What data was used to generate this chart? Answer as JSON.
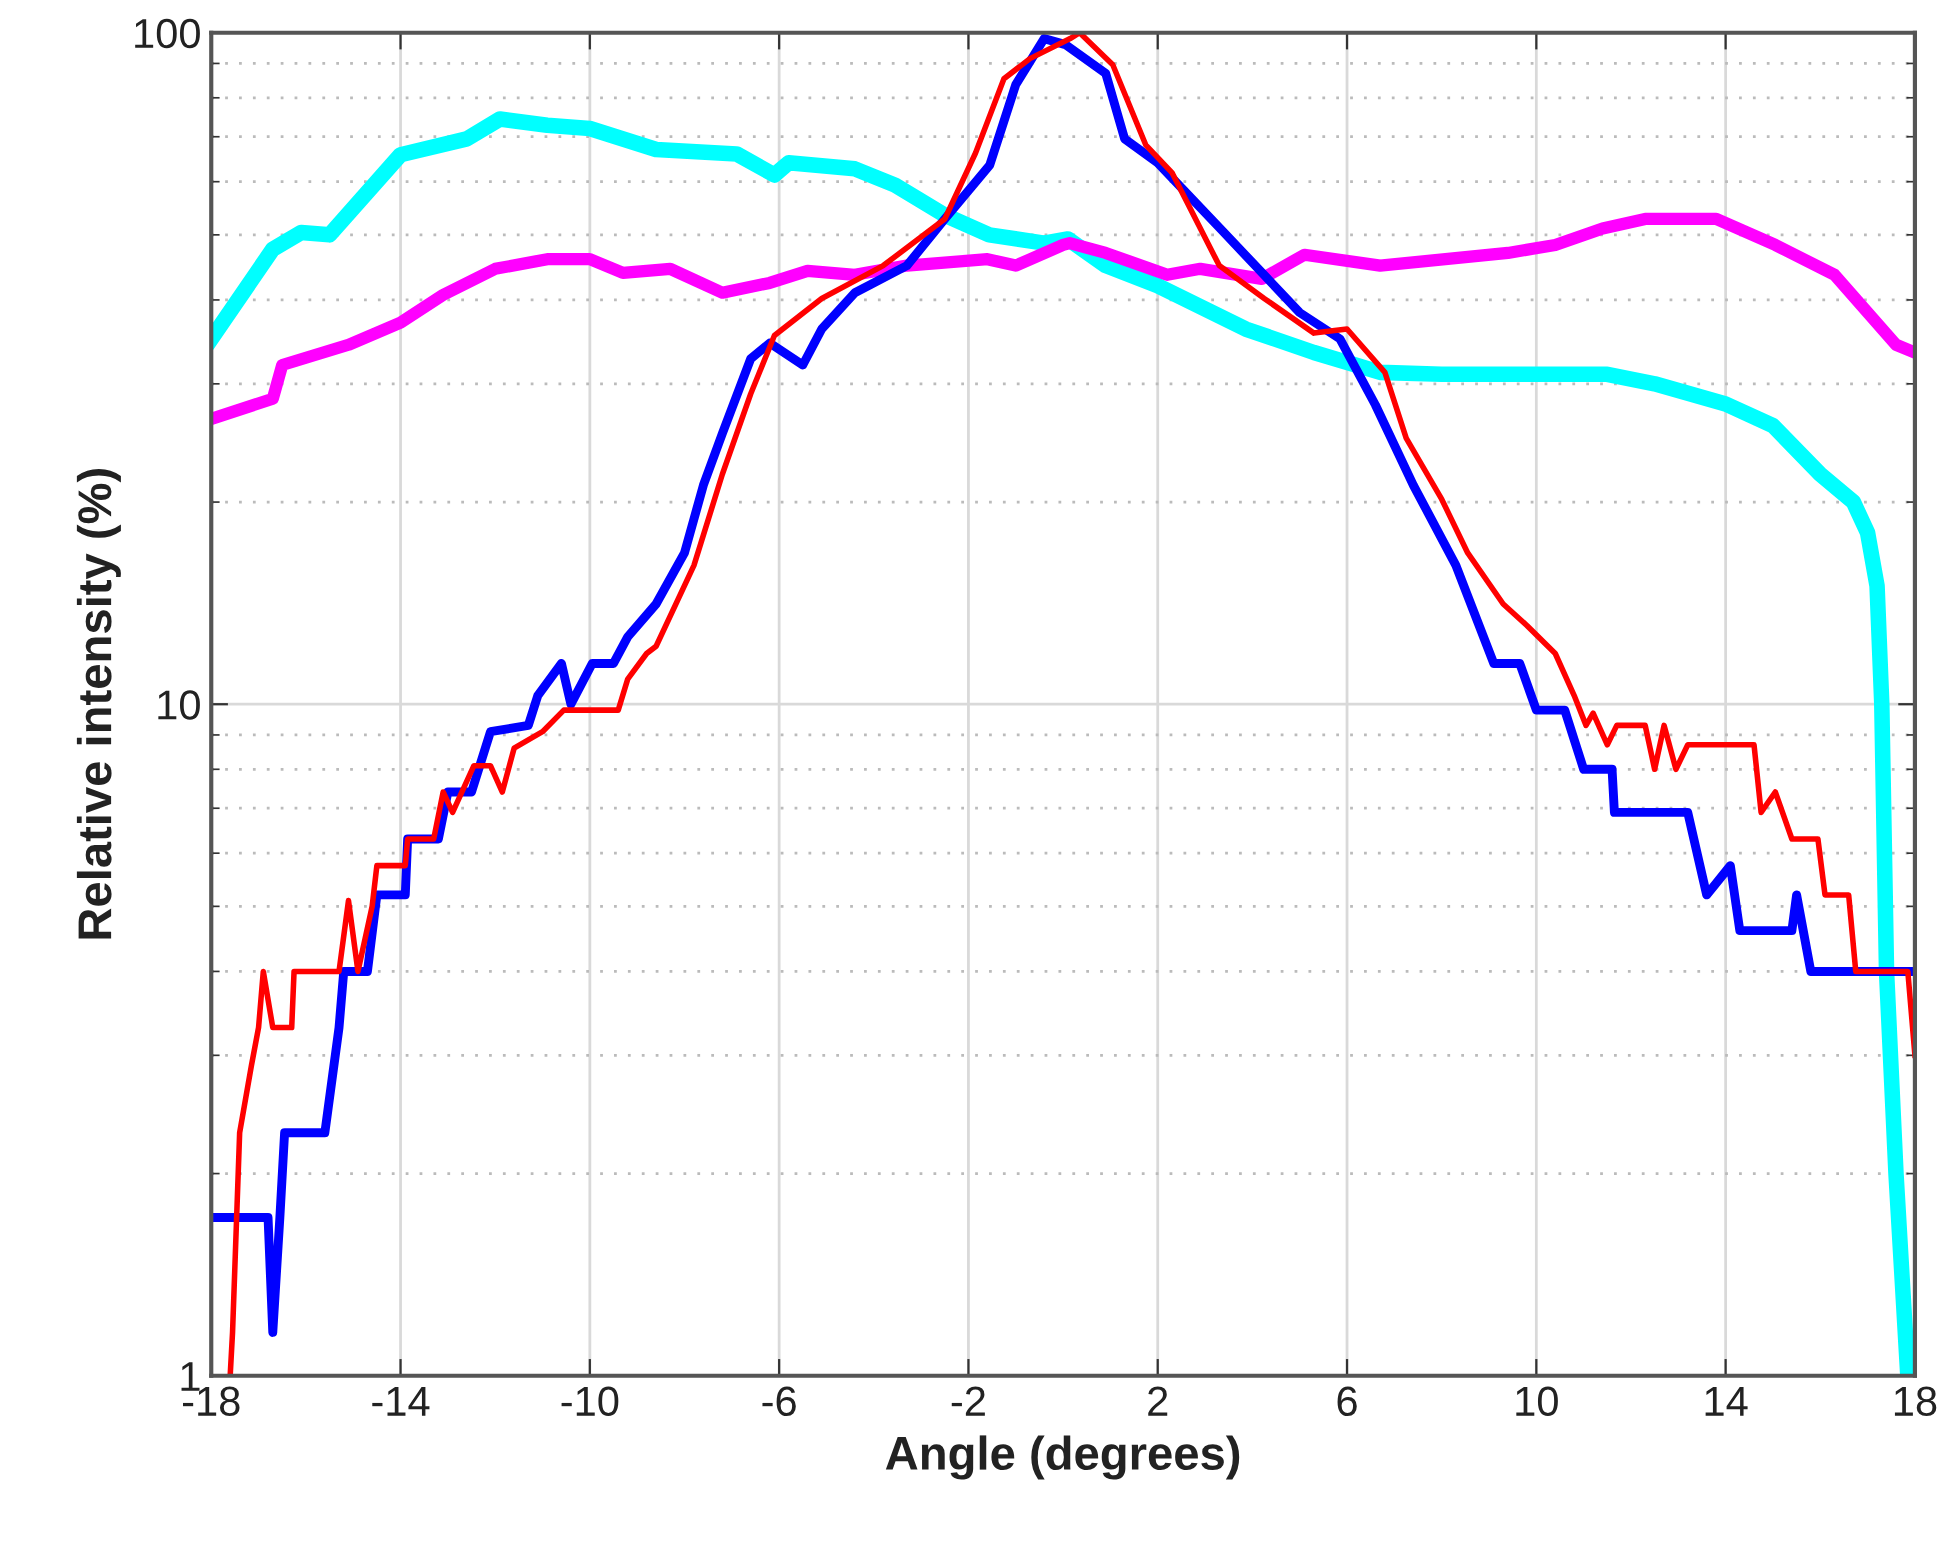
{
  "chart_data": {
    "type": "line",
    "xlabel": "Angle (degrees)",
    "ylabel": "Relative intensity (%)",
    "log": "y",
    "grid": true,
    "legend": false,
    "marker": "none",
    "line_style": "solid",
    "xlim": [
      -18,
      18
    ],
    "xticks": [
      -18,
      -14,
      -10,
      -6,
      -2,
      2,
      6,
      10,
      14,
      18
    ],
    "ylim": [
      1,
      100
    ],
    "yticks": [
      1,
      10,
      100
    ],
    "series": [
      {
        "color": "#00ffff",
        "x": [
          -18,
          -16.7,
          -16.1,
          -15.5,
          -14,
          -12.6,
          -11.9,
          -10.9,
          -10,
          -8.6,
          -6.9,
          -6.1,
          -5.8,
          -4.4,
          -3.55,
          -2.5,
          -1.56,
          -0.4,
          0.1,
          0.9,
          2,
          3.86,
          5.3,
          6.7,
          8,
          9,
          10,
          11.5,
          12.5,
          14,
          15,
          16,
          16.7,
          17,
          17.2,
          17.3,
          17.4,
          17.6,
          17.85
        ],
        "values": [
          35,
          47.6,
          50.4,
          50,
          65.8,
          69.5,
          74.4,
          72.8,
          72,
          67,
          66,
          61.4,
          64,
          62.7,
          59.3,
          53.5,
          50,
          48.6,
          49.3,
          45,
          42,
          36.2,
          33.4,
          31.2,
          31,
          31,
          31,
          31,
          30,
          28,
          26,
          22,
          20,
          18,
          15,
          10,
          4,
          2,
          1
        ]
      },
      {
        "color": "#ff00ff",
        "x": [
          -18,
          -16.7,
          -16.5,
          -15.1,
          -14,
          -13.1,
          -12,
          -10.9,
          -10,
          -9.3,
          -8.3,
          -7.2,
          -6.2,
          -5.4,
          -4.4,
          -3.3,
          -1.6,
          -1,
          0,
          0.14,
          0.9,
          2.2,
          2.9,
          4.2,
          5.1,
          6.7,
          9.4,
          10.4,
          11.4,
          12.3,
          13.8,
          15.05,
          16.3,
          17.6,
          18
        ],
        "values": [
          26.6,
          28.5,
          32,
          34.3,
          37,
          40.7,
          44.5,
          46,
          46,
          43.9,
          44.5,
          41,
          42.4,
          44.2,
          43.6,
          45,
          46,
          45,
          48.3,
          48.6,
          47,
          43.6,
          44.5,
          43,
          46.7,
          45,
          47,
          48.3,
          51.1,
          52.8,
          52.8,
          48.3,
          43.6,
          34.3,
          33.4
        ]
      },
      {
        "color": "#0000ff",
        "x": [
          -18,
          -16.8,
          -16.7,
          -16.55,
          -16.45,
          -15.6,
          -15.3,
          -15.2,
          -14.7,
          -14.5,
          -13.9,
          -13.85,
          -13.2,
          -13,
          -12.5,
          -12.1,
          -11.3,
          -11.1,
          -10.6,
          -10.4,
          -9.95,
          -9.5,
          -9.2,
          -8.6,
          -8,
          -7.6,
          -7.2,
          -6.6,
          -6.2,
          -5.5,
          -5.1,
          -4.4,
          -3.3,
          -2.5,
          -1.55,
          -1,
          -0.4,
          0.05,
          0.9,
          1.3,
          2,
          3.4,
          5,
          5.85,
          6.6,
          7.4,
          8.3,
          9.1,
          9.65,
          10,
          10.6,
          11,
          11.6,
          11.65,
          13.2,
          13.6,
          14.1,
          14.3,
          15.4,
          15.5,
          15.8,
          18
        ],
        "values": [
          1.72,
          1.72,
          1.16,
          1.72,
          2.3,
          2.3,
          3.3,
          4,
          4,
          5.2,
          5.2,
          6.3,
          6.3,
          7.4,
          7.4,
          9.1,
          9.3,
          10.3,
          11.5,
          10,
          11.5,
          11.5,
          12.6,
          14.1,
          16.8,
          21.2,
          25.3,
          32.7,
          34.5,
          32,
          36.2,
          41,
          45,
          52.8,
          63.5,
          83.7,
          98,
          96,
          87,
          69.5,
          64,
          50.4,
          38.3,
          35,
          27.9,
          21.2,
          16.1,
          11.5,
          11.5,
          9.8,
          9.8,
          8,
          8,
          6.9,
          6.9,
          5.2,
          5.75,
          4.6,
          4.6,
          5.2,
          4,
          4
        ]
      },
      {
        "color": "#ff0000",
        "x": [
          -17.6,
          -17.55,
          -17.4,
          -17.15,
          -17,
          -16.9,
          -16.7,
          -16.3,
          -16.25,
          -15.3,
          -15.1,
          -14.9,
          -14.6,
          -14.5,
          -13.9,
          -13.85,
          -13.3,
          -13.1,
          -12.9,
          -12.45,
          -12.1,
          -11.85,
          -11.6,
          -11,
          -10.55,
          -9.4,
          -9.2,
          -8.8,
          -8.6,
          -7.8,
          -7.2,
          -6.6,
          -6.1,
          -5.1,
          -3.8,
          -2.5,
          -1.85,
          -1.25,
          -0.7,
          0.15,
          0.35,
          1.05,
          1.75,
          2.3,
          3.3,
          4.25,
          5.3,
          6,
          6.8,
          7.25,
          8,
          8.55,
          9.3,
          9.8,
          10.4,
          10.8,
          11.05,
          11.2,
          11.5,
          11.7,
          12.3,
          12.5,
          12.7,
          12.95,
          13.2,
          14.6,
          14.75,
          15.05,
          15.4,
          15.95,
          16.1,
          16.6,
          16.75,
          17.85,
          18
        ],
        "values": [
          1,
          1.16,
          2.3,
          2.9,
          3.3,
          4,
          3.3,
          3.3,
          4,
          4,
          5.1,
          4,
          5,
          5.75,
          5.75,
          6.3,
          6.3,
          7.4,
          6.9,
          8.1,
          8.1,
          7.4,
          8.6,
          9.1,
          9.8,
          9.8,
          10.9,
          11.9,
          12.2,
          16.1,
          22,
          29,
          35.4,
          40.2,
          45,
          52.8,
          66.2,
          85.4,
          91.5,
          98,
          100,
          89.6,
          68,
          61.9,
          45,
          40.2,
          35.7,
          36.2,
          31.2,
          24.9,
          20.2,
          16.8,
          14.1,
          13.1,
          11.9,
          10.3,
          9.3,
          9.7,
          8.7,
          9.3,
          9.3,
          8,
          9.3,
          8,
          8.7,
          8.7,
          6.9,
          7.4,
          6.3,
          6.3,
          5.2,
          5.2,
          4,
          4,
          3
        ]
      }
    ]
  }
}
